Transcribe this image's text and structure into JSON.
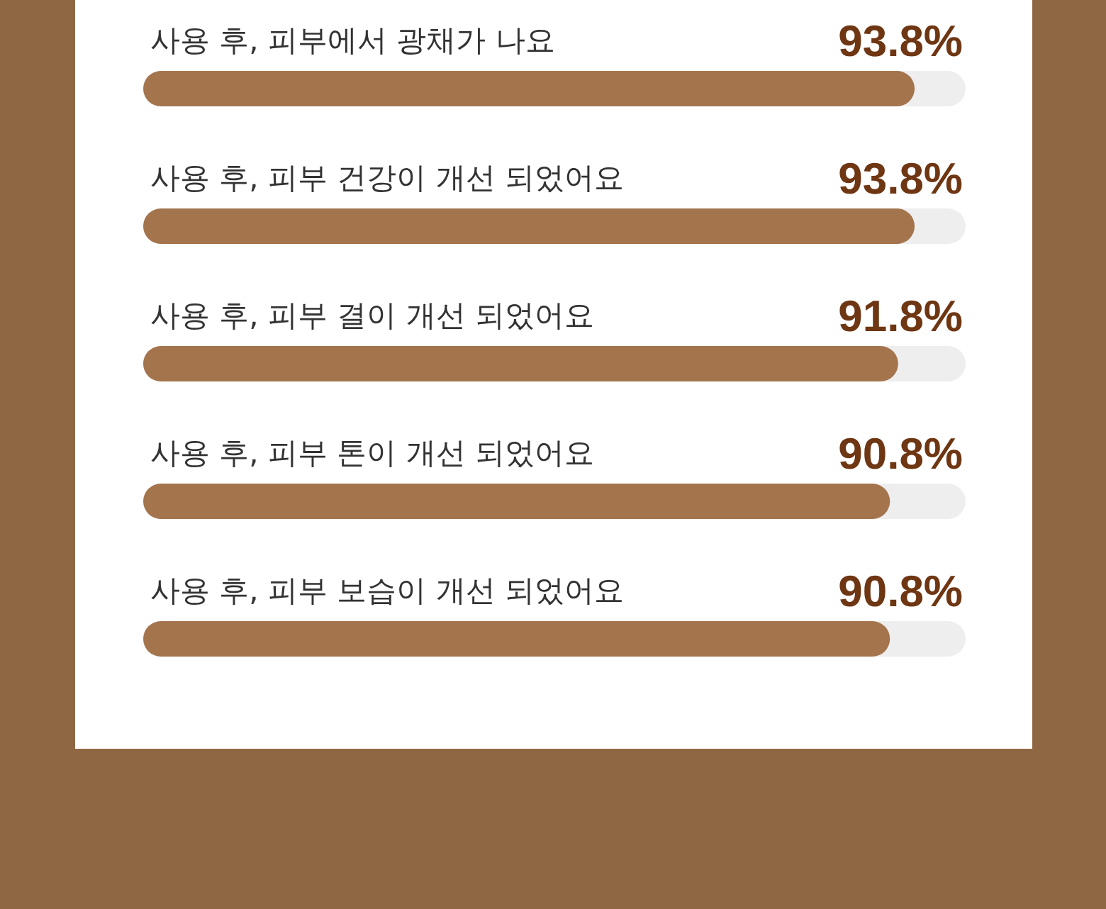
{
  "chart_data": {
    "type": "bar",
    "orientation": "horizontal",
    "categories": [
      "사용 후, 피부에서 광채가 나요",
      "사용 후, 피부 건강이 개선 되었어요",
      "사용 후, 피부 결이 개선 되었어요",
      "사용 후, 피부 톤이 개선 되었어요",
      "사용 후, 피부 보습이 개선 되었어요"
    ],
    "values": [
      93.8,
      93.8,
      91.8,
      90.8,
      90.8
    ],
    "value_labels": [
      "93.8%",
      "93.8%",
      "91.8%",
      "90.8%",
      "90.8%"
    ],
    "color": "#a4744d",
    "xlim": [
      0,
      100
    ],
    "tick_labels": "y"
  }
}
